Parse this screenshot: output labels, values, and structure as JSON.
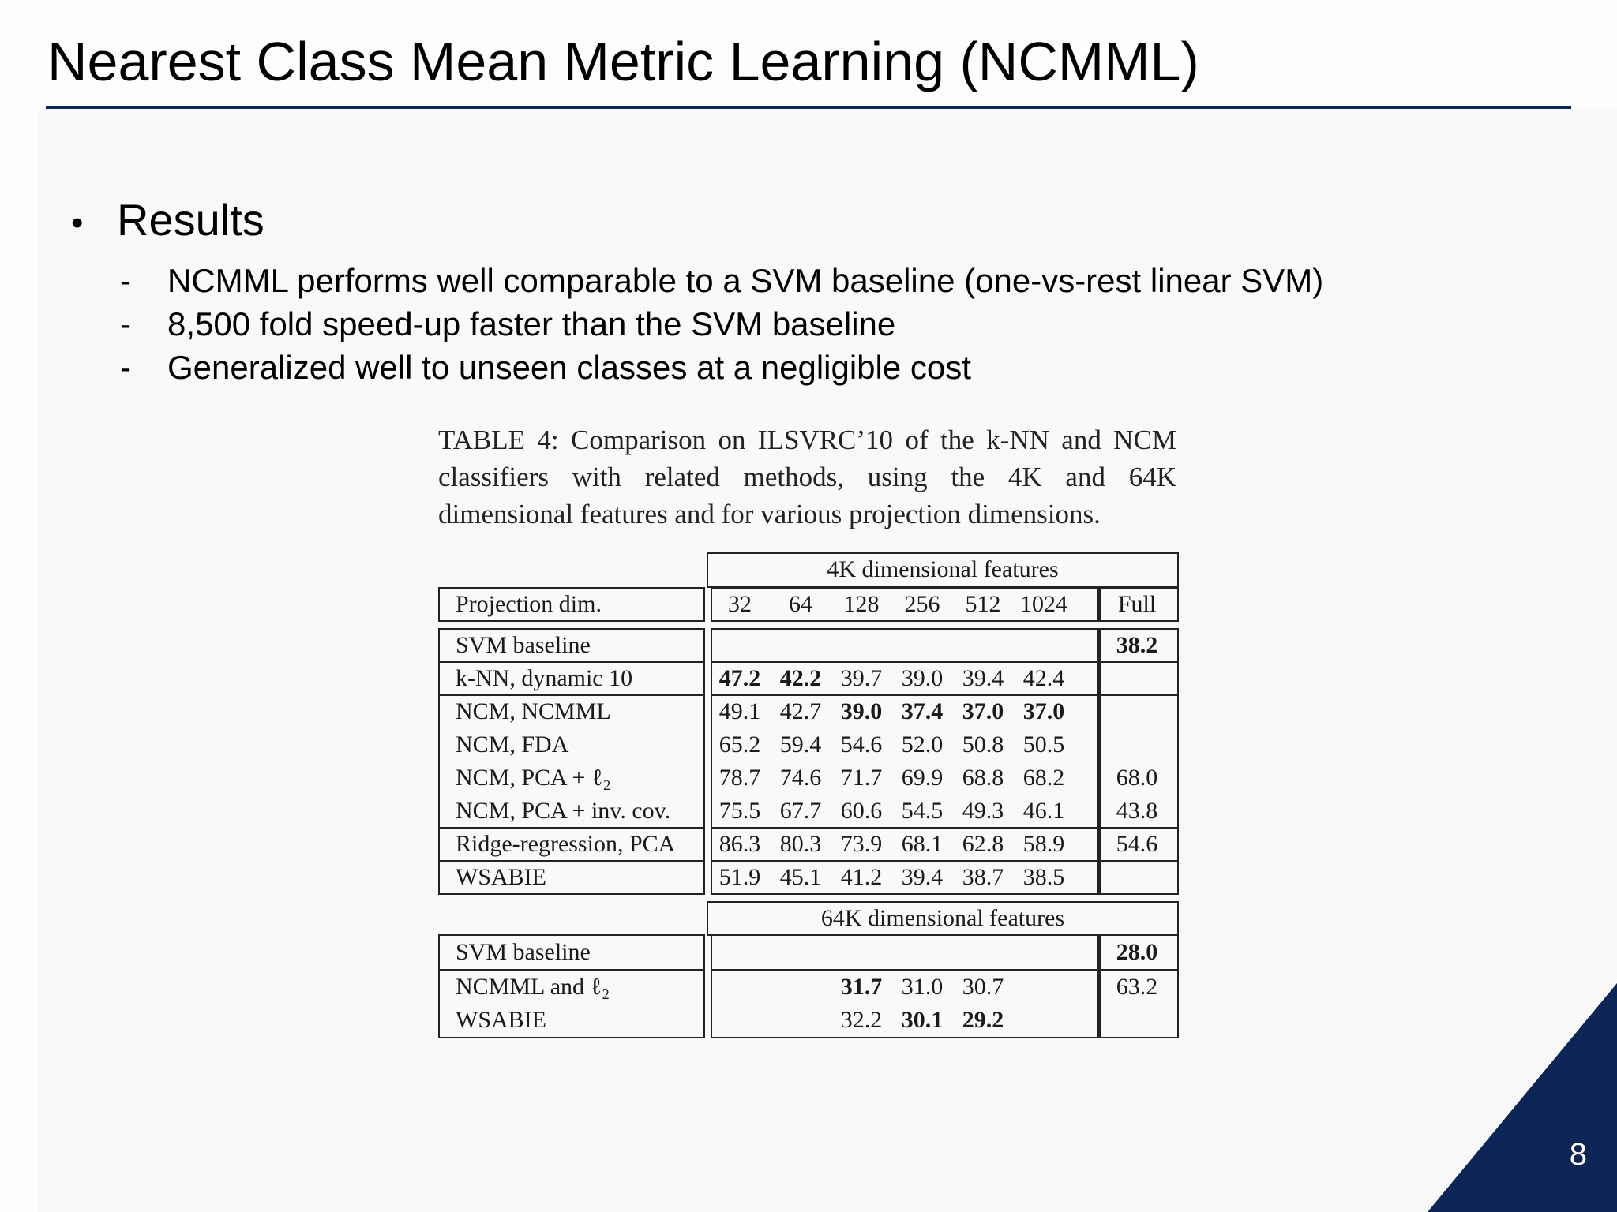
{
  "slide": {
    "title": "Nearest Class Mean Metric Learning (NCMML)",
    "bullet": "Results",
    "subpoints": [
      "NCMML performs well comparable to a SVM baseline (one-vs-rest linear SVM)",
      "8,500 fold speed-up faster than the SVM baseline",
      "Generalized well to unseen classes at a negligible cost"
    ],
    "page_number": "8",
    "accent_color": "#0d2456"
  },
  "table": {
    "caption": "TABLE 4: Comparison on ILSVRC’10 of the k-NN and NCM classifiers with related methods, using the 4K and 64K dimensional features and for various projection dimensions.",
    "header_4k": "4K dimensional features",
    "header_64k": "64K dimensional features",
    "proj_label": "Projection dim.",
    "dims": [
      "32",
      "64",
      "128",
      "256",
      "512",
      "1024"
    ],
    "full_label": "Full",
    "rows_4k": [
      {
        "name": "SVM baseline",
        "values": [
          "",
          "",
          "",
          "",
          "",
          ""
        ],
        "full": "38.2",
        "bold": [
          false,
          false,
          false,
          false,
          false,
          false
        ],
        "full_bold": true
      },
      {
        "name": "k-NN, dynamic 10",
        "values": [
          "47.2",
          "42.2",
          "39.7",
          "39.0",
          "39.4",
          "42.4"
        ],
        "full": "",
        "bold": [
          true,
          true,
          false,
          false,
          false,
          false
        ],
        "full_bold": false
      },
      {
        "name": "NCM, NCMML",
        "values": [
          "49.1",
          "42.7",
          "39.0",
          "37.4",
          "37.0",
          "37.0"
        ],
        "full": "",
        "bold": [
          false,
          false,
          true,
          true,
          true,
          true
        ],
        "full_bold": false
      },
      {
        "name": "NCM, FDA",
        "values": [
          "65.2",
          "59.4",
          "54.6",
          "52.0",
          "50.8",
          "50.5"
        ],
        "full": "",
        "bold": [
          false,
          false,
          false,
          false,
          false,
          false
        ],
        "full_bold": false
      },
      {
        "name": "NCM, PCA + ℓ₂",
        "values": [
          "78.7",
          "74.6",
          "71.7",
          "69.9",
          "68.8",
          "68.2"
        ],
        "full": "68.0",
        "bold": [
          false,
          false,
          false,
          false,
          false,
          false
        ],
        "full_bold": false
      },
      {
        "name": "NCM, PCA + inv. cov.",
        "values": [
          "75.5",
          "67.7",
          "60.6",
          "54.5",
          "49.3",
          "46.1"
        ],
        "full": "43.8",
        "bold": [
          false,
          false,
          false,
          false,
          false,
          false
        ],
        "full_bold": false
      },
      {
        "name": "Ridge-regression, PCA",
        "values": [
          "86.3",
          "80.3",
          "73.9",
          "68.1",
          "62.8",
          "58.9"
        ],
        "full": "54.6",
        "bold": [
          false,
          false,
          false,
          false,
          false,
          false
        ],
        "full_bold": false
      },
      {
        "name": "WSABIE",
        "values": [
          "51.9",
          "45.1",
          "41.2",
          "39.4",
          "38.7",
          "38.5"
        ],
        "full": "",
        "bold": [
          false,
          false,
          false,
          false,
          false,
          false
        ],
        "full_bold": false
      }
    ],
    "rows_64k": [
      {
        "name": "SVM baseline",
        "values": [
          "",
          "",
          "",
          "",
          "",
          ""
        ],
        "full": "28.0",
        "bold": [
          false,
          false,
          false,
          false,
          false,
          false
        ],
        "full_bold": true
      },
      {
        "name": "NCMML and ℓ₂",
        "values": [
          "",
          "",
          "31.7",
          "31.0",
          "30.7",
          ""
        ],
        "full": "63.2",
        "bold": [
          false,
          false,
          true,
          false,
          false,
          false
        ],
        "full_bold": false
      },
      {
        "name": "WSABIE",
        "values": [
          "",
          "",
          "32.2",
          "30.1",
          "29.2",
          ""
        ],
        "full": "",
        "bold": [
          false,
          false,
          false,
          true,
          true,
          false
        ],
        "full_bold": false
      }
    ]
  }
}
